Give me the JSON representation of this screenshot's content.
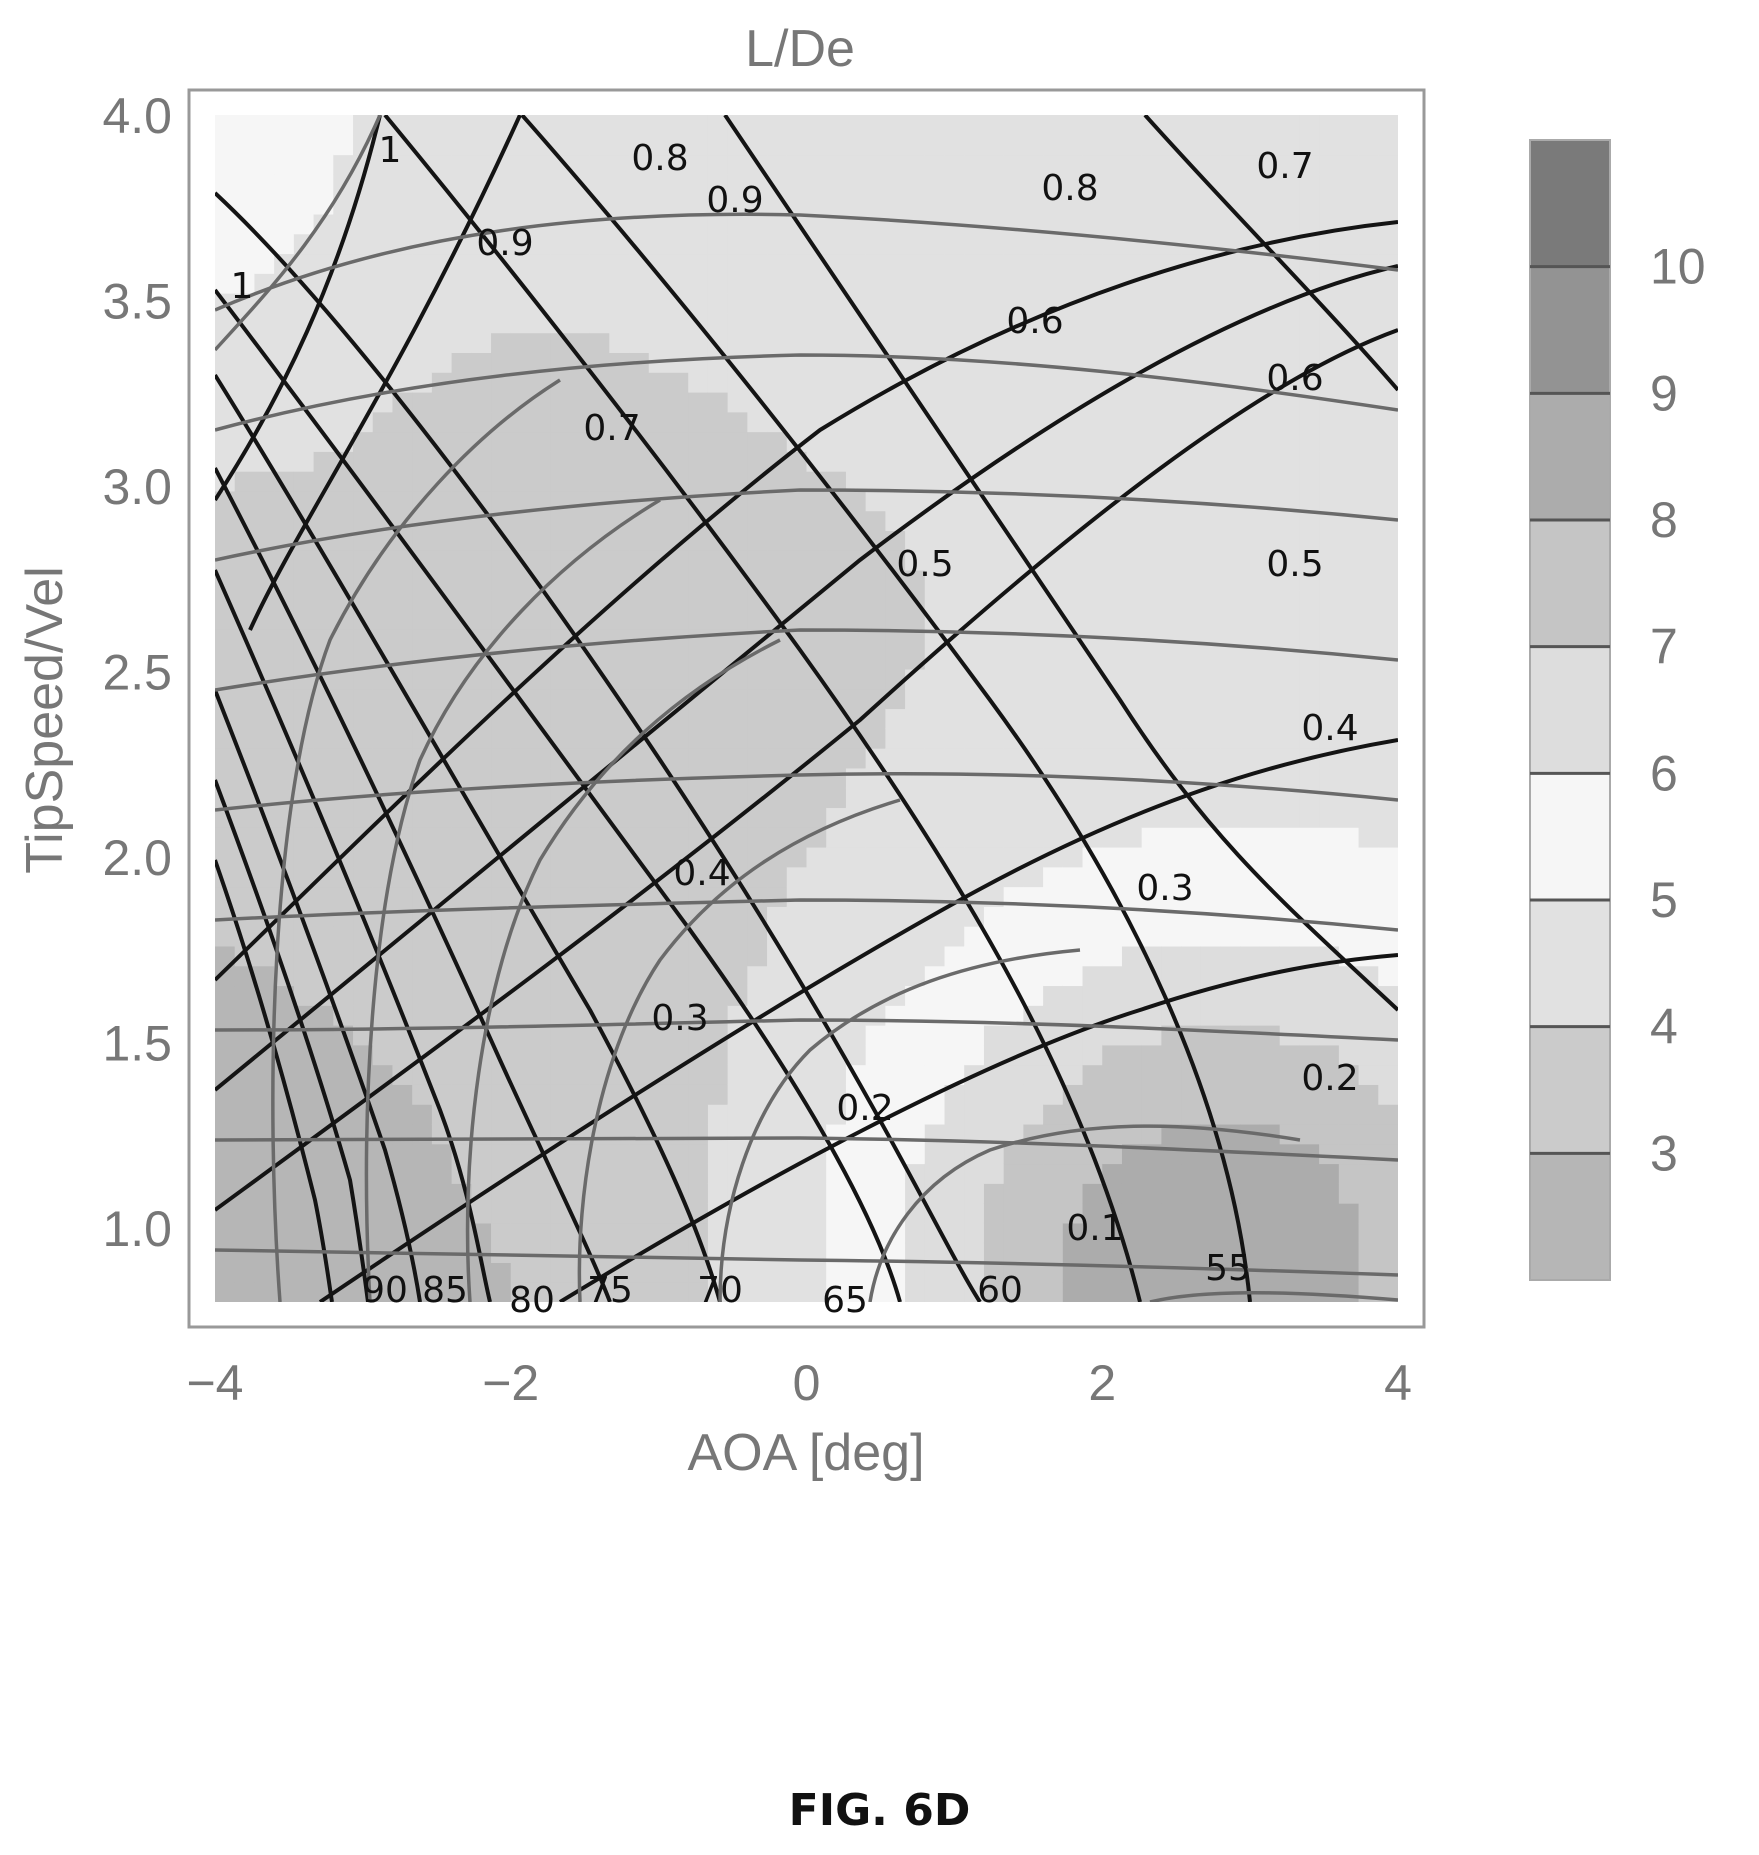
{
  "figure_caption": "FIG. 6D",
  "chart_data": {
    "type": "contour",
    "title": "L/De",
    "xlabel": "AOA [deg]",
    "ylabel": "TipSpeed/Vel",
    "xlim": [
      -4,
      4
    ],
    "ylim": [
      0.8,
      4.0
    ],
    "x_ticks": [
      "−4",
      "−2",
      "0",
      "2",
      "4"
    ],
    "y_ticks": [
      "1.0",
      "1.5",
      "2.0",
      "2.5",
      "3.0",
      "3.5",
      "4.0"
    ],
    "colorbar": {
      "ticks": [
        "3",
        "4",
        "5",
        "6",
        "7",
        "8",
        "9",
        "10"
      ],
      "levels": [
        2,
        3,
        4,
        5,
        6,
        7,
        8,
        9,
        10,
        11
      ],
      "shade_lightest_at": 5.5,
      "color_light": "#f6f6f6",
      "color_dark": "#6e6e6e"
    },
    "overlay_contours": {
      "efficiency_labels": [
        "1",
        "1",
        "0.9",
        "0.9",
        "0.8",
        "0.8",
        "0.7",
        "0.7",
        "0.6",
        "0.6",
        "0.5",
        "0.5",
        "0.4",
        "0.4",
        "0.3",
        "0.3",
        "0.2",
        "0.2",
        "0.1"
      ],
      "angle_labels": [
        "90",
        "85",
        "80",
        "75",
        "70",
        "65",
        "60",
        "55"
      ]
    },
    "grid": false,
    "colors": {
      "frame": "#999999",
      "contour_dark": "#141414",
      "contour_gray": "#6a6a6a"
    }
  }
}
